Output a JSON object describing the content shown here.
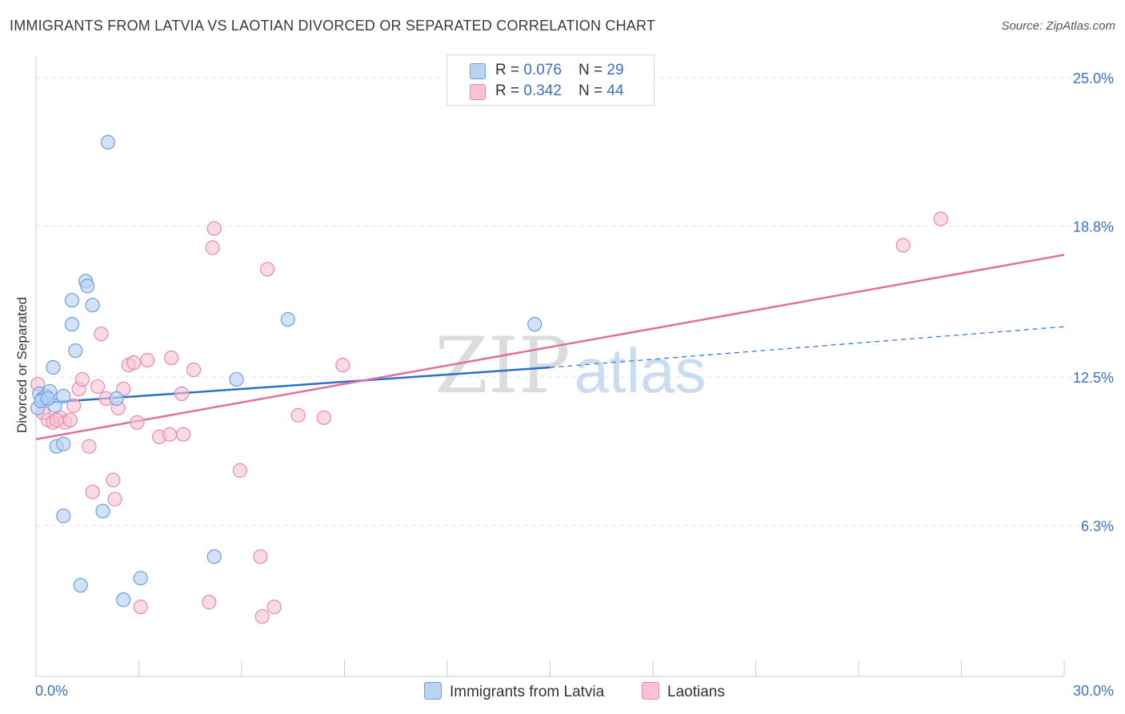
{
  "header": {
    "title": "IMMIGRANTS FROM LATVIA VS LAOTIAN DIVORCED OR SEPARATED CORRELATION CHART",
    "source": "Source: ZipAtlas.com"
  },
  "legend": {
    "latvia": {
      "r_label": "R = ",
      "r_value": "0.076",
      "n_label": "N = ",
      "n_value": "29"
    },
    "laotians": {
      "r_label": "R = ",
      "r_value": "0.342",
      "n_label": "N = ",
      "n_value": "44"
    }
  },
  "watermark": {
    "zip": "ZIP",
    "atlas": "atlas"
  },
  "colors": {
    "latvia_fill": "#b9d3f3",
    "latvia_stroke": "#6d9ede",
    "latvia_line": "#2c6fcd",
    "laotians_fill": "#f7c3d3",
    "laotians_stroke": "#e88aa8",
    "laotians_line": "#e0709a",
    "tick_label": "#3a6fc4",
    "grid": "#e3e3e3"
  },
  "chart_data": {
    "type": "scatter",
    "title": "IMMIGRANTS FROM LATVIA VS LAOTIAN DIVORCED OR SEPARATED CORRELATION CHART",
    "xlabel": "",
    "ylabel": "Divorced or Separated",
    "xlim": [
      0,
      30
    ],
    "ylim": [
      0,
      25.9
    ],
    "x_tick_labels": [
      "0.0%",
      "30.0%"
    ],
    "y_ticks": [
      6.3,
      12.5,
      18.8,
      25.0
    ],
    "y_tick_labels": [
      "6.3%",
      "12.5%",
      "18.8%",
      "25.0%"
    ],
    "grid": true,
    "legend_position": "top-center",
    "series": [
      {
        "name": "Immigrants from Latvia",
        "points": [
          [
            0.05,
            11.2
          ],
          [
            0.1,
            11.8
          ],
          [
            0.2,
            11.6
          ],
          [
            0.3,
            11.7
          ],
          [
            0.4,
            11.9
          ],
          [
            0.55,
            11.3
          ],
          [
            0.5,
            12.9
          ],
          [
            0.6,
            9.6
          ],
          [
            0.8,
            9.7
          ],
          [
            0.8,
            11.7
          ],
          [
            0.8,
            6.7
          ],
          [
            1.05,
            15.7
          ],
          [
            1.05,
            14.7
          ],
          [
            1.15,
            13.6
          ],
          [
            1.3,
            3.8
          ],
          [
            1.45,
            16.5
          ],
          [
            1.5,
            16.3
          ],
          [
            1.65,
            15.5
          ],
          [
            1.95,
            6.9
          ],
          [
            2.1,
            22.3
          ],
          [
            2.35,
            11.6
          ],
          [
            2.55,
            3.2
          ],
          [
            3.05,
            4.1
          ],
          [
            5.2,
            5.0
          ],
          [
            5.85,
            12.4
          ],
          [
            7.35,
            14.9
          ],
          [
            14.55,
            14.7
          ],
          [
            0.15,
            11.5
          ],
          [
            0.35,
            11.6
          ]
        ],
        "trend_solid": [
          [
            0,
            11.4
          ],
          [
            15,
            12.9
          ]
        ],
        "trend_dashed": [
          [
            15,
            12.9
          ],
          [
            30,
            14.6
          ]
        ]
      },
      {
        "name": "Laotians",
        "points": [
          [
            0.05,
            12.2
          ],
          [
            0.2,
            11.0
          ],
          [
            0.35,
            10.7
          ],
          [
            0.5,
            10.6
          ],
          [
            0.7,
            10.8
          ],
          [
            0.85,
            10.6
          ],
          [
            1.0,
            10.7
          ],
          [
            1.1,
            11.3
          ],
          [
            1.25,
            12.0
          ],
          [
            1.35,
            12.4
          ],
          [
            1.55,
            9.6
          ],
          [
            1.65,
            7.7
          ],
          [
            1.8,
            12.1
          ],
          [
            1.9,
            14.3
          ],
          [
            2.05,
            11.6
          ],
          [
            2.25,
            8.2
          ],
          [
            2.3,
            7.4
          ],
          [
            2.4,
            11.2
          ],
          [
            2.55,
            12.0
          ],
          [
            2.7,
            13.0
          ],
          [
            2.85,
            13.1
          ],
          [
            2.95,
            10.6
          ],
          [
            3.05,
            2.9
          ],
          [
            3.25,
            13.2
          ],
          [
            3.6,
            10.0
          ],
          [
            3.9,
            10.1
          ],
          [
            3.95,
            13.3
          ],
          [
            4.25,
            11.8
          ],
          [
            4.3,
            10.1
          ],
          [
            4.6,
            12.8
          ],
          [
            5.05,
            3.1
          ],
          [
            5.15,
            17.9
          ],
          [
            5.2,
            18.7
          ],
          [
            5.95,
            8.6
          ],
          [
            6.55,
            5.0
          ],
          [
            6.6,
            2.5
          ],
          [
            6.75,
            17.0
          ],
          [
            6.95,
            2.9
          ],
          [
            7.65,
            10.9
          ],
          [
            8.4,
            10.8
          ],
          [
            8.95,
            13.0
          ],
          [
            25.3,
            18.0
          ],
          [
            26.4,
            19.1
          ],
          [
            0.6,
            10.7
          ]
        ],
        "trend_solid": [
          [
            0,
            9.9
          ],
          [
            30,
            17.6
          ]
        ]
      }
    ]
  },
  "bottom_legend": {
    "latvia_label": "Immigrants from Latvia",
    "laotians_label": "Laotians"
  }
}
